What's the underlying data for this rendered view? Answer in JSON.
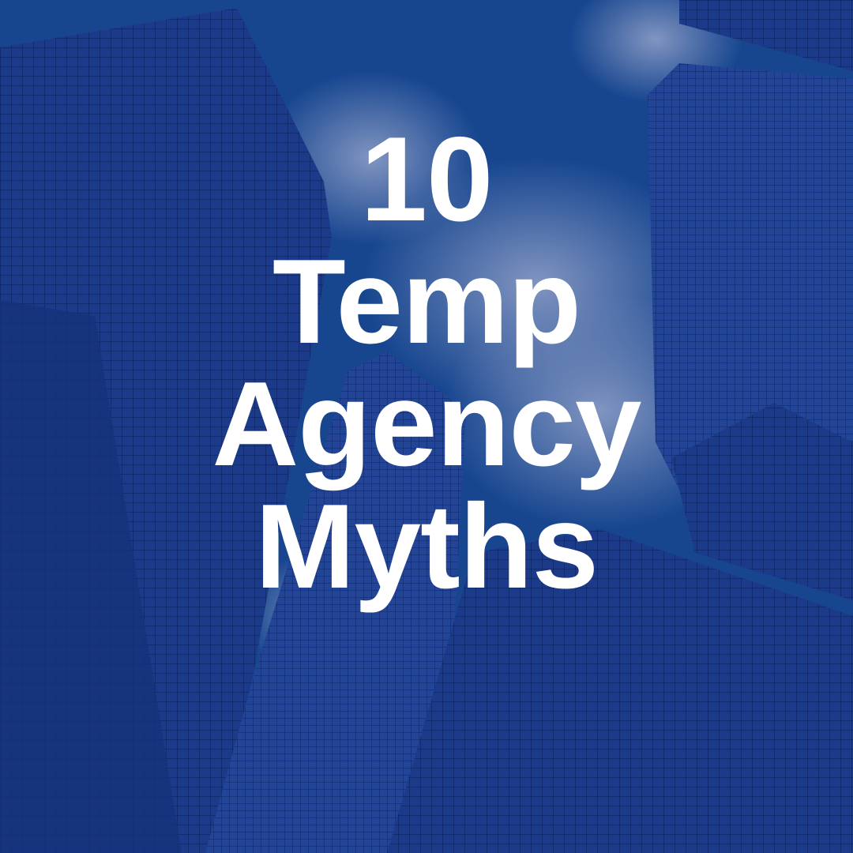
{
  "graphic": {
    "title_lines": [
      "10",
      "Temp",
      "Agency",
      "Myths"
    ],
    "background": "skyscrapers-looking-up-at-sky",
    "colors": {
      "sky": "#1b4f96",
      "building": "#1e3a8c",
      "cloud": "#8fa3c8",
      "text": "#ffffff"
    }
  }
}
